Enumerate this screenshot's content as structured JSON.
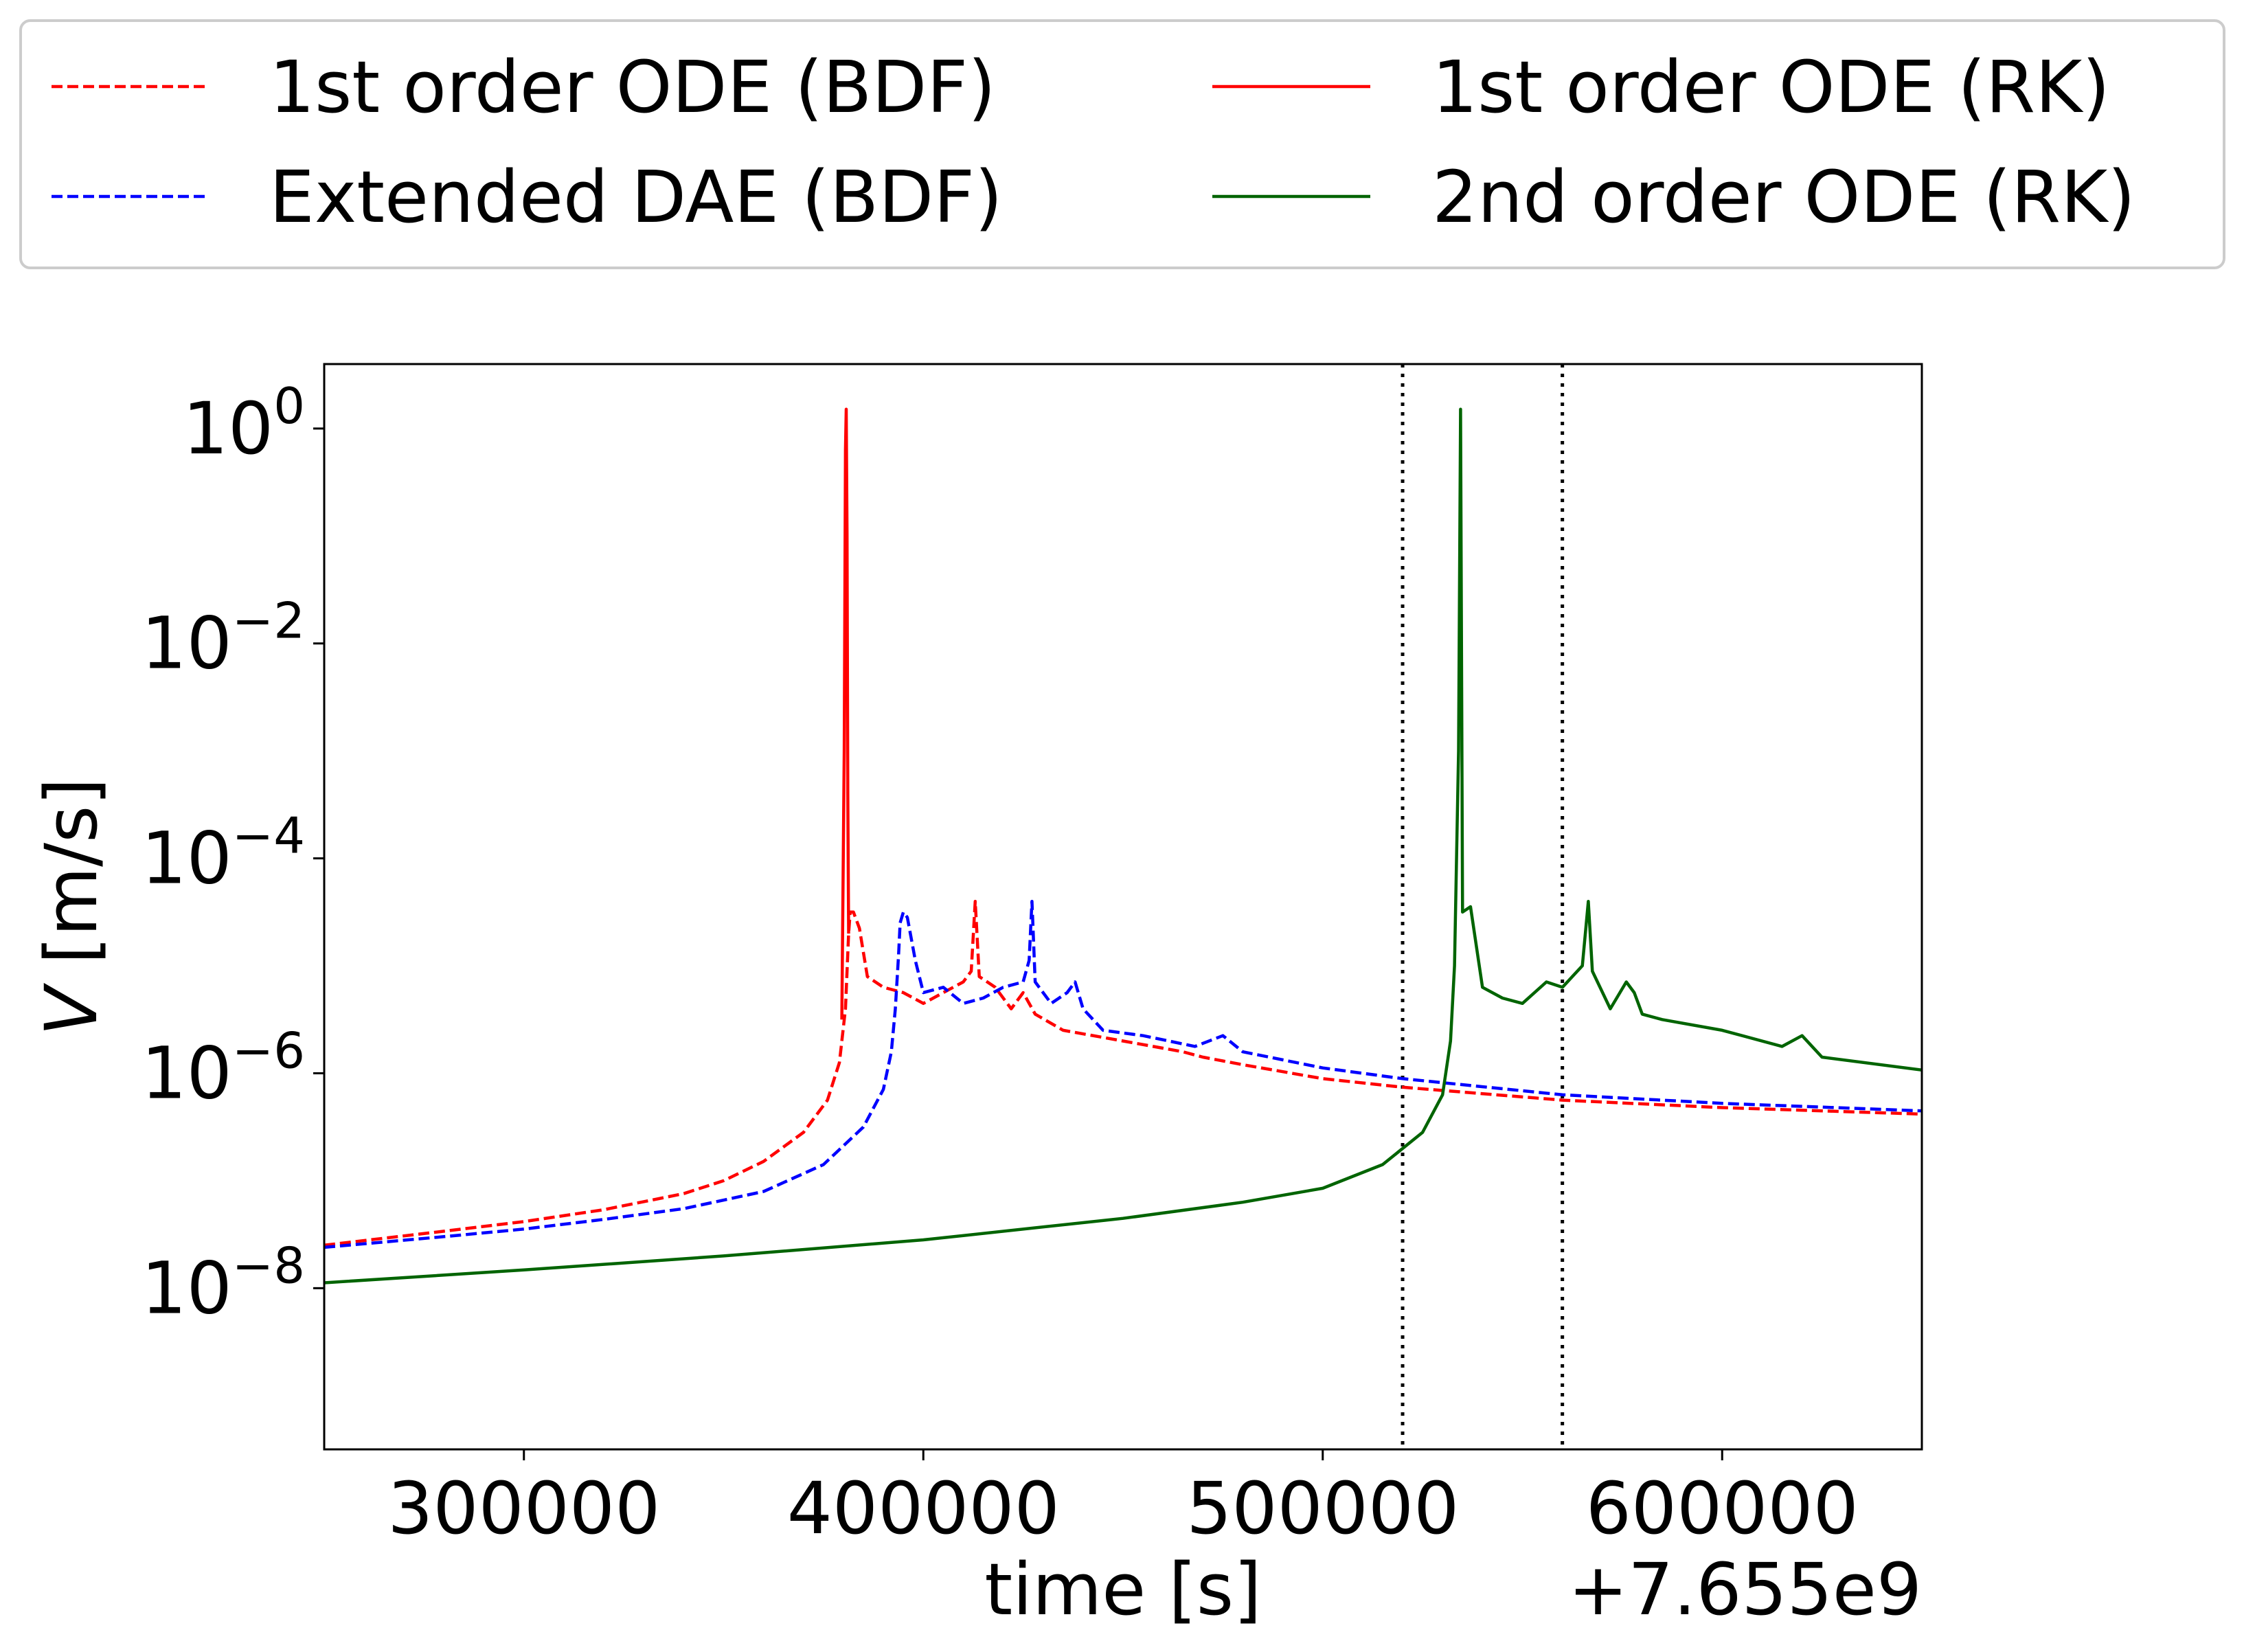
{
  "chart_data": {
    "type": "line",
    "xlabel": "time [s]",
    "x_offset_label": "+7.655e9",
    "ylabel_var": "V",
    "ylabel_unit": " [m/s]",
    "x_range": [
      250000,
      650000
    ],
    "y_log_range": [
      -9.5,
      0.6
    ],
    "y_scale": "log",
    "x_ticks": [
      {
        "value": 300000,
        "label": "300000"
      },
      {
        "value": 400000,
        "label": "400000"
      },
      {
        "value": 500000,
        "label": "500000"
      },
      {
        "value": 600000,
        "label": "600000"
      }
    ],
    "y_ticks": [
      {
        "exp": 0,
        "base": "10",
        "sup": "0"
      },
      {
        "exp": -2,
        "base": "10",
        "sup": "−2"
      },
      {
        "exp": -4,
        "base": "10",
        "sup": "−4"
      },
      {
        "exp": -6,
        "base": "10",
        "sup": "−6"
      },
      {
        "exp": -8,
        "base": "10",
        "sup": "−8"
      }
    ],
    "grid": false,
    "legend_placement": "top (above plot, 2 columns)",
    "vlines": [
      520000,
      560000
    ],
    "series": [
      {
        "name": "1st order ODE (BDF)",
        "color": "#ff0000",
        "dash": true,
        "log10": [
          [
            250000,
            -7.6
          ],
          [
            280000,
            -7.47
          ],
          [
            300000,
            -7.38
          ],
          [
            320000,
            -7.27
          ],
          [
            340000,
            -7.12
          ],
          [
            350000,
            -7.0
          ],
          [
            360000,
            -6.82
          ],
          [
            370000,
            -6.55
          ],
          [
            376000,
            -6.25
          ],
          [
            379000,
            -5.9
          ],
          [
            380500,
            -5.4
          ],
          [
            381300,
            -4.7
          ],
          [
            381700,
            -4.5
          ],
          [
            382500,
            -4.5
          ],
          [
            384000,
            -4.65
          ],
          [
            386000,
            -5.1
          ],
          [
            390000,
            -5.2
          ],
          [
            395000,
            -5.25
          ],
          [
            400000,
            -5.35
          ],
          [
            405000,
            -5.25
          ],
          [
            410000,
            -5.15
          ],
          [
            412000,
            -5.05
          ],
          [
            413000,
            -4.4
          ],
          [
            414000,
            -5.1
          ],
          [
            418000,
            -5.2
          ],
          [
            422000,
            -5.4
          ],
          [
            425000,
            -5.25
          ],
          [
            428000,
            -5.45
          ],
          [
            435000,
            -5.6
          ],
          [
            450000,
            -5.7
          ],
          [
            465000,
            -5.8
          ],
          [
            470000,
            -5.85
          ],
          [
            480000,
            -5.92
          ],
          [
            500000,
            -6.05
          ],
          [
            520000,
            -6.13
          ],
          [
            560000,
            -6.25
          ],
          [
            600000,
            -6.32
          ],
          [
            650000,
            -6.38
          ]
        ]
      },
      {
        "name": "Extended DAE (BDF)",
        "color": "#0000ff",
        "dash": true,
        "log10": [
          [
            250000,
            -7.62
          ],
          [
            280000,
            -7.52
          ],
          [
            300000,
            -7.45
          ],
          [
            320000,
            -7.36
          ],
          [
            340000,
            -7.26
          ],
          [
            360000,
            -7.1
          ],
          [
            375000,
            -6.85
          ],
          [
            385000,
            -6.5
          ],
          [
            390000,
            -6.15
          ],
          [
            392000,
            -5.8
          ],
          [
            393000,
            -5.4
          ],
          [
            393800,
            -4.9
          ],
          [
            394200,
            -4.6
          ],
          [
            395000,
            -4.5
          ],
          [
            396000,
            -4.55
          ],
          [
            398000,
            -4.95
          ],
          [
            400000,
            -5.25
          ],
          [
            405000,
            -5.2
          ],
          [
            410000,
            -5.35
          ],
          [
            415000,
            -5.3
          ],
          [
            420000,
            -5.2
          ],
          [
            425000,
            -5.15
          ],
          [
            426500,
            -4.95
          ],
          [
            427200,
            -4.4
          ],
          [
            428000,
            -5.15
          ],
          [
            432000,
            -5.35
          ],
          [
            436000,
            -5.25
          ],
          [
            438000,
            -5.15
          ],
          [
            440000,
            -5.4
          ],
          [
            445000,
            -5.6
          ],
          [
            455000,
            -5.65
          ],
          [
            468000,
            -5.75
          ],
          [
            475000,
            -5.65
          ],
          [
            480000,
            -5.8
          ],
          [
            500000,
            -5.95
          ],
          [
            520000,
            -6.05
          ],
          [
            560000,
            -6.2
          ],
          [
            600000,
            -6.28
          ],
          [
            650000,
            -6.35
          ]
        ]
      },
      {
        "name": "1st order ODE (RK)",
        "color": "#ff0000",
        "dash": false,
        "log10": [
          [
            379600,
            -5.5
          ],
          [
            380200,
            -3.0
          ],
          [
            380500,
            -0.2
          ],
          [
            380700,
            0.18
          ],
          [
            380900,
            -1.0
          ],
          [
            381100,
            -3.4
          ],
          [
            381300,
            -4.7
          ]
        ]
      },
      {
        "name": "2nd order ODE (RK)",
        "color": "#006400",
        "dash": false,
        "log10": [
          [
            250000,
            -7.95
          ],
          [
            300000,
            -7.83
          ],
          [
            350000,
            -7.7
          ],
          [
            400000,
            -7.55
          ],
          [
            450000,
            -7.35
          ],
          [
            480000,
            -7.2
          ],
          [
            500000,
            -7.07
          ],
          [
            515000,
            -6.85
          ],
          [
            525000,
            -6.55
          ],
          [
            530000,
            -6.2
          ],
          [
            532000,
            -5.7
          ],
          [
            533000,
            -5.0
          ],
          [
            534000,
            -3.0
          ],
          [
            534500,
            0.18
          ],
          [
            535000,
            -4.5
          ],
          [
            537000,
            -4.45
          ],
          [
            540000,
            -5.2
          ],
          [
            545000,
            -5.3
          ],
          [
            550000,
            -5.35
          ],
          [
            556000,
            -5.15
          ],
          [
            560000,
            -5.2
          ],
          [
            565000,
            -5.0
          ],
          [
            566500,
            -4.4
          ],
          [
            567500,
            -5.05
          ],
          [
            572000,
            -5.4
          ],
          [
            576000,
            -5.15
          ],
          [
            578000,
            -5.25
          ],
          [
            580000,
            -5.45
          ],
          [
            585000,
            -5.5
          ],
          [
            600000,
            -5.6
          ],
          [
            615000,
            -5.75
          ],
          [
            620000,
            -5.65
          ],
          [
            625000,
            -5.85
          ],
          [
            650000,
            -5.97
          ]
        ]
      }
    ]
  }
}
